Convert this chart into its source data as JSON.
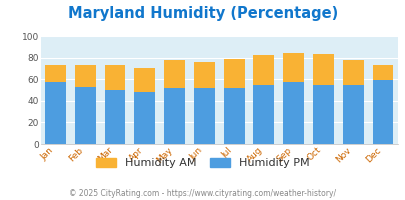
{
  "title": "Maryland Humidity (Percentage)",
  "months": [
    "Jan",
    "Feb",
    "Mar",
    "Apr",
    "May",
    "Jun",
    "Jul",
    "Aug",
    "Sep",
    "Oct",
    "Nov",
    "Dec"
  ],
  "humidity_pm": [
    57,
    53,
    50,
    48,
    52,
    52,
    52,
    55,
    57,
    55,
    55,
    59
  ],
  "humidity_am_top": [
    16,
    20,
    23,
    22,
    26,
    24,
    27,
    27,
    27,
    28,
    23,
    14
  ],
  "color_pm": "#4d9de0",
  "color_am": "#f9b234",
  "bg_color": "#ddeef6",
  "plot_bg": "#ddeef6",
  "ylim": [
    0,
    100
  ],
  "yticks": [
    0,
    20,
    40,
    60,
    80,
    100
  ],
  "title_color": "#1177cc",
  "legend_am": "Humidity AM",
  "legend_pm": "Humidity PM",
  "footer": "© 2025 CityRating.com - https://www.cityrating.com/weather-history/",
  "footer_color": "#888888",
  "month_label_color": "#cc6600",
  "ytick_color": "#555555",
  "title_fontsize": 10.5,
  "tick_fontsize": 6.5,
  "legend_fontsize": 8,
  "footer_fontsize": 5.5,
  "bar_width": 0.7
}
